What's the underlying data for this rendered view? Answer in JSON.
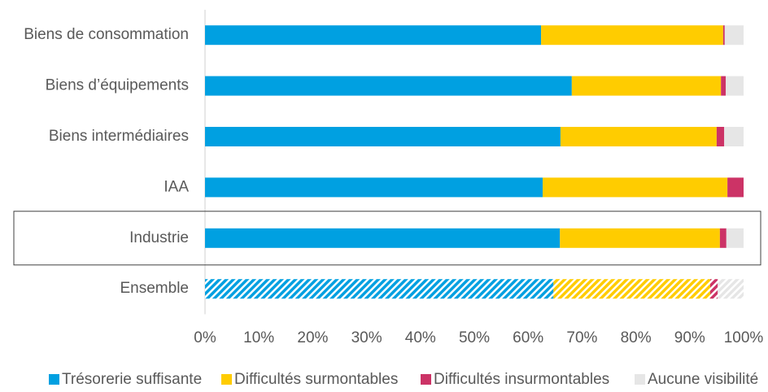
{
  "chart_data": {
    "type": "stacked-bar-horizontal",
    "categories": [
      "Biens de consommation",
      "Biens d’équipements",
      "Biens intermédiaires",
      "IAA",
      "Industrie",
      "Ensemble"
    ],
    "series": [
      {
        "name": "Trésorerie suffisante",
        "color": "#00a0e1",
        "values": [
          62.4,
          68.1,
          66.0,
          62.7,
          65.9,
          64.7
        ]
      },
      {
        "name": "Difficultés surmontables",
        "color": "#ffcc00",
        "values": [
          33.8,
          27.7,
          29.0,
          34.3,
          29.7,
          29.1
        ]
      },
      {
        "name": "Difficultés insurmontables",
        "color": "#cc3366",
        "values": [
          0.3,
          0.9,
          1.4,
          3.0,
          1.2,
          1.4
        ]
      },
      {
        "name": "Aucune visibilité",
        "color": "#e6e6e6",
        "values": [
          3.5,
          3.3,
          3.6,
          0.0,
          3.2,
          4.8
        ]
      }
    ],
    "hatched": [
      false,
      false,
      false,
      false,
      false,
      true
    ],
    "highlighted": [
      false,
      false,
      false,
      false,
      true,
      false
    ],
    "xlim": [
      0,
      100
    ],
    "xticks": [
      {
        "value": 0,
        "label": "0%"
      },
      {
        "value": 10,
        "label": "10%"
      },
      {
        "value": 20,
        "label": "20%"
      },
      {
        "value": 30,
        "label": "30%"
      },
      {
        "value": 40,
        "label": "40%"
      },
      {
        "value": 50,
        "label": "50%"
      },
      {
        "value": 60,
        "label": "60%"
      },
      {
        "value": 70,
        "label": "70%"
      },
      {
        "value": 80,
        "label": "80%"
      },
      {
        "value": 90,
        "label": "90%"
      },
      {
        "value": 100,
        "label": "100%"
      }
    ],
    "grid": false,
    "legend": "bottom"
  }
}
